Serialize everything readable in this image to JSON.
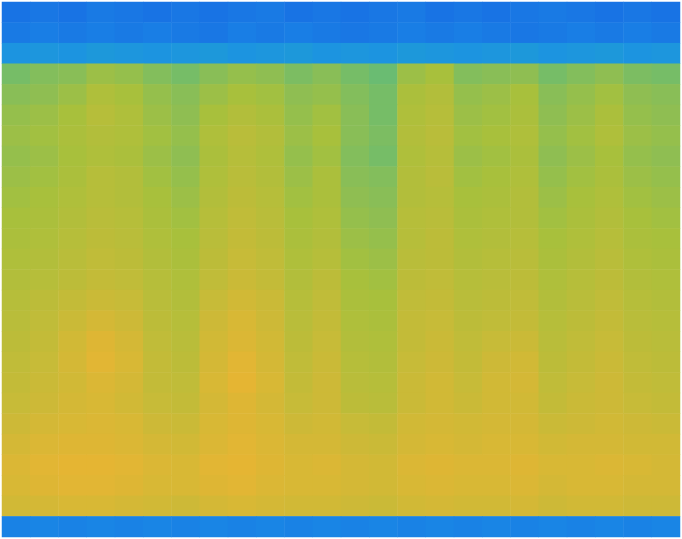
{
  "chart_data": {
    "type": "heatmap",
    "tick_labels": false,
    "zlim": [
      0,
      100
    ],
    "cells": [
      [
        12,
        13,
        12,
        14,
        13,
        12,
        13,
        12,
        13,
        14,
        12,
        13,
        12,
        13,
        14,
        12,
        13,
        12,
        13,
        14,
        13,
        12,
        13,
        12
      ],
      [
        14,
        15,
        14,
        15,
        14,
        15,
        14,
        13,
        15,
        14,
        15,
        14,
        13,
        14,
        15,
        14,
        15,
        14,
        13,
        14,
        15,
        14,
        15,
        14
      ],
      [
        22,
        23,
        22,
        24,
        23,
        22,
        23,
        24,
        22,
        23,
        24,
        22,
        23,
        22,
        24,
        23,
        22,
        23,
        24,
        22,
        23,
        24,
        22,
        23
      ],
      [
        52,
        54,
        55,
        58,
        57,
        54,
        52,
        55,
        57,
        56,
        53,
        55,
        52,
        50,
        58,
        60,
        54,
        55,
        56,
        52,
        54,
        56,
        53,
        52
      ],
      [
        55,
        56,
        58,
        62,
        60,
        57,
        55,
        58,
        60,
        59,
        56,
        57,
        54,
        52,
        61,
        63,
        57,
        58,
        60,
        55,
        57,
        59,
        56,
        55
      ],
      [
        57,
        58,
        60,
        64,
        62,
        58,
        56,
        60,
        63,
        61,
        57,
        59,
        55,
        52,
        62,
        64,
        58,
        59,
        61,
        56,
        58,
        61,
        57,
        56
      ],
      [
        58,
        59,
        61,
        63,
        62,
        59,
        57,
        62,
        65,
        63,
        58,
        60,
        55,
        53,
        63,
        65,
        59,
        60,
        62,
        57,
        59,
        62,
        58,
        57
      ],
      [
        57,
        58,
        60,
        62,
        61,
        58,
        56,
        61,
        64,
        62,
        57,
        59,
        54,
        52,
        62,
        64,
        58,
        59,
        61,
        56,
        58,
        60,
        57,
        56
      ],
      [
        58,
        59,
        61,
        64,
        63,
        59,
        57,
        62,
        65,
        63,
        58,
        61,
        55,
        54,
        63,
        65,
        59,
        60,
        62,
        57,
        59,
        61,
        58,
        57
      ],
      [
        59,
        60,
        62,
        64,
        63,
        60,
        58,
        63,
        66,
        64,
        59,
        61,
        56,
        55,
        63,
        64,
        60,
        61,
        63,
        58,
        60,
        62,
        59,
        58
      ],
      [
        60,
        61,
        63,
        65,
        64,
        61,
        59,
        64,
        67,
        65,
        60,
        62,
        57,
        56,
        64,
        65,
        61,
        62,
        63,
        59,
        61,
        63,
        60,
        59
      ],
      [
        61,
        62,
        64,
        66,
        65,
        62,
        60,
        65,
        68,
        66,
        61,
        63,
        58,
        57,
        64,
        66,
        62,
        63,
        64,
        60,
        62,
        64,
        61,
        60
      ],
      [
        62,
        63,
        65,
        67,
        66,
        63,
        61,
        66,
        69,
        67,
        62,
        64,
        59,
        58,
        65,
        66,
        63,
        64,
        65,
        61,
        63,
        65,
        62,
        61
      ],
      [
        63,
        64,
        66,
        68,
        67,
        64,
        62,
        67,
        70,
        68,
        63,
        66,
        60,
        59,
        66,
        67,
        64,
        65,
        66,
        62,
        64,
        66,
        63,
        62
      ],
      [
        64,
        66,
        68,
        70,
        69,
        65,
        63,
        69,
        72,
        70,
        64,
        67,
        61,
        60,
        67,
        68,
        65,
        66,
        67,
        63,
        65,
        67,
        64,
        63
      ],
      [
        65,
        67,
        70,
        73,
        71,
        66,
        64,
        71,
        74,
        71,
        65,
        68,
        62,
        61,
        68,
        69,
        66,
        67,
        68,
        64,
        66,
        68,
        65,
        64
      ],
      [
        66,
        68,
        72,
        76,
        73,
        67,
        65,
        72,
        75,
        72,
        66,
        69,
        63,
        62,
        68,
        70,
        67,
        69,
        70,
        65,
        67,
        69,
        66,
        65
      ],
      [
        67,
        69,
        73,
        77,
        74,
        68,
        66,
        73,
        77,
        73,
        67,
        70,
        64,
        63,
        69,
        71,
        68,
        71,
        72,
        66,
        68,
        70,
        67,
        66
      ],
      [
        68,
        70,
        72,
        75,
        73,
        68,
        67,
        74,
        78,
        74,
        68,
        71,
        65,
        64,
        70,
        72,
        69,
        72,
        73,
        67,
        69,
        71,
        68,
        67
      ],
      [
        69,
        71,
        73,
        74,
        72,
        69,
        68,
        73,
        76,
        73,
        69,
        71,
        66,
        65,
        70,
        72,
        70,
        72,
        72,
        68,
        70,
        71,
        69,
        68
      ],
      [
        71,
        73,
        74,
        75,
        74,
        71,
        70,
        74,
        76,
        74,
        71,
        72,
        69,
        68,
        72,
        73,
        72,
        73,
        73,
        70,
        71,
        72,
        71,
        70
      ],
      [
        73,
        75,
        76,
        76,
        75,
        73,
        72,
        75,
        77,
        75,
        73,
        73,
        71,
        70,
        73,
        74,
        73,
        74,
        74,
        72,
        73,
        73,
        72,
        72
      ],
      [
        75,
        77,
        78,
        78,
        77,
        75,
        74,
        77,
        78,
        76,
        74,
        75,
        73,
        72,
        75,
        76,
        75,
        75,
        76,
        74,
        74,
        75,
        74,
        73
      ],
      [
        74,
        76,
        77,
        77,
        76,
        74,
        74,
        76,
        77,
        75,
        74,
        74,
        73,
        72,
        74,
        75,
        74,
        74,
        75,
        73,
        74,
        74,
        73,
        73
      ],
      [
        72,
        73,
        74,
        74,
        73,
        72,
        71,
        73,
        74,
        73,
        72,
        72,
        71,
        70,
        72,
        73,
        72,
        72,
        73,
        71,
        72,
        72,
        71,
        71
      ],
      [
        16,
        17,
        16,
        17,
        16,
        17,
        16,
        17,
        16,
        17,
        16,
        17,
        16,
        17,
        16,
        17,
        16,
        17,
        16,
        17,
        16,
        17,
        16,
        17
      ]
    ]
  }
}
